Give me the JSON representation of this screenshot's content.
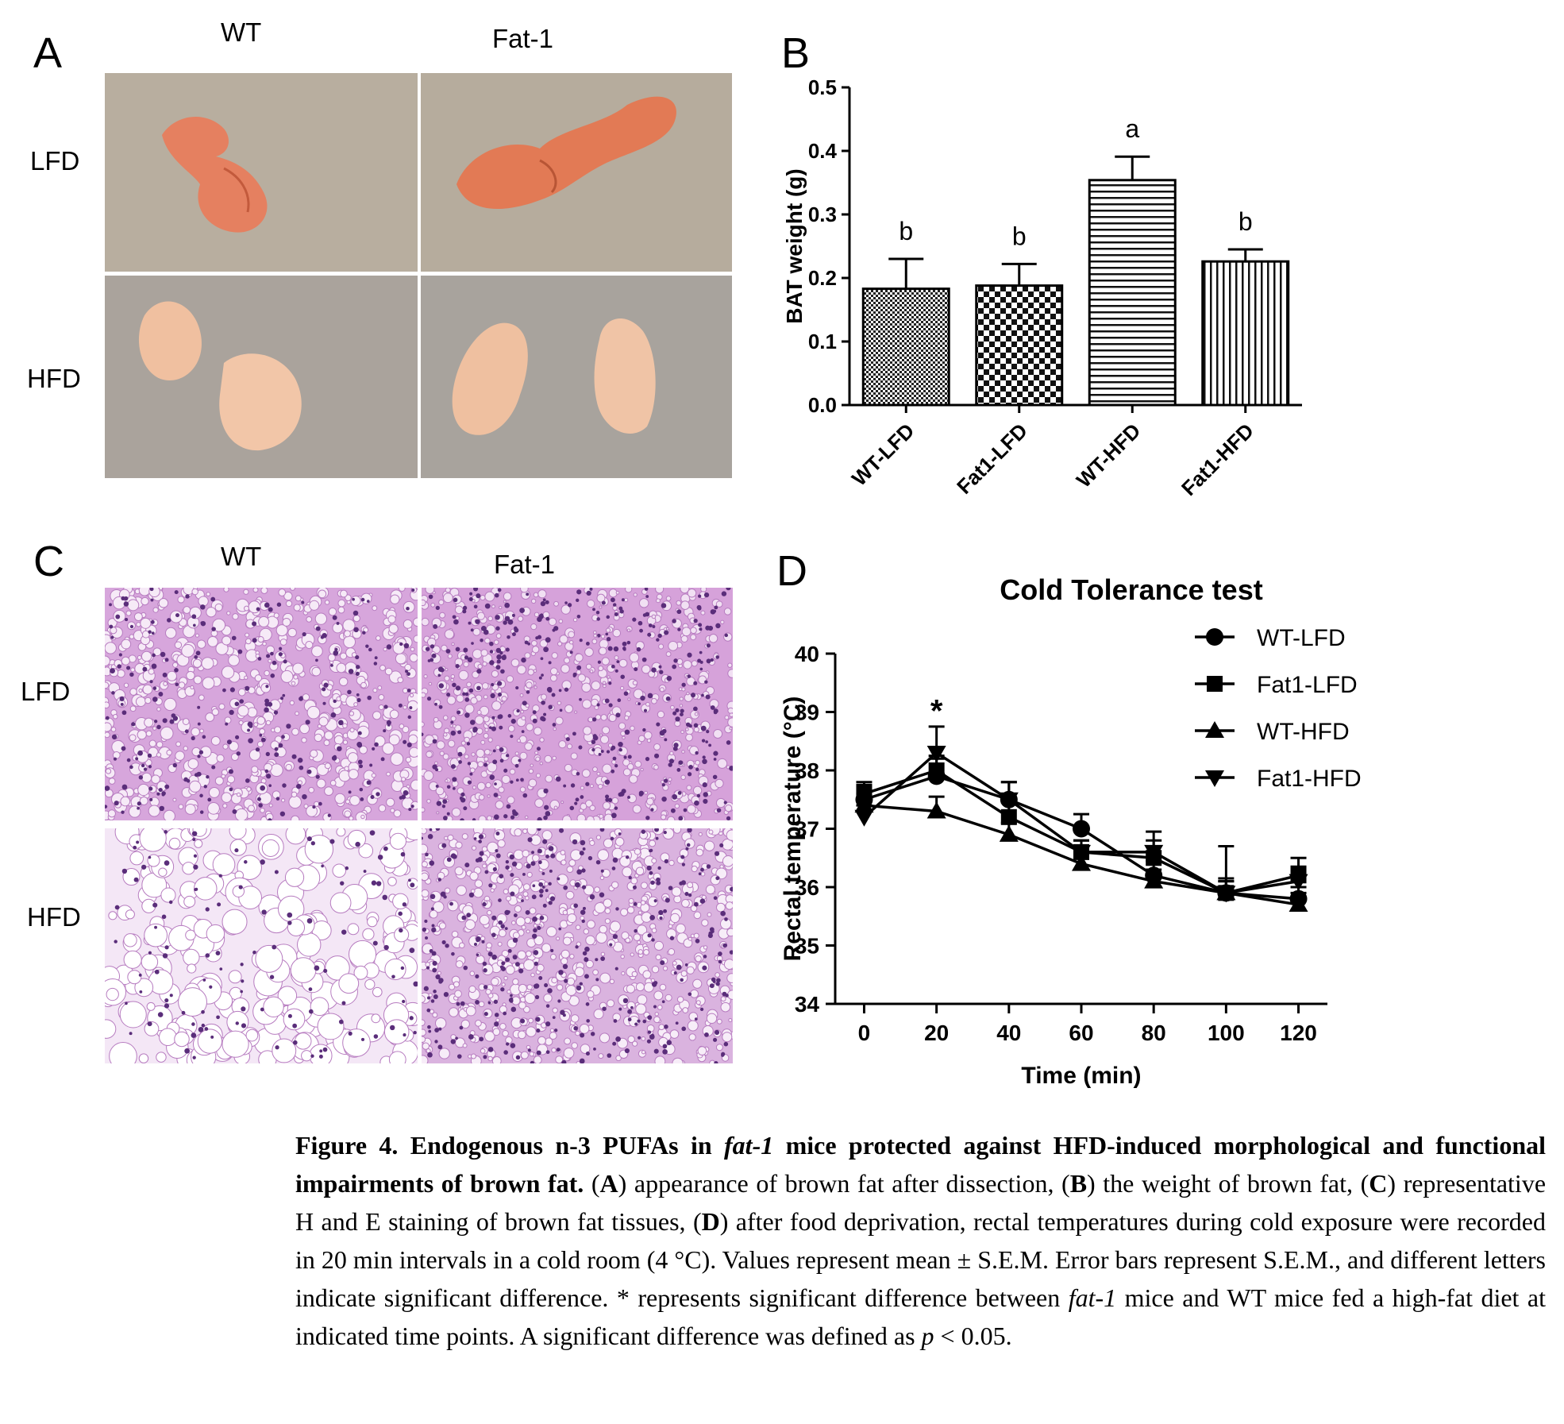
{
  "panels": {
    "A": {
      "letter": "A",
      "columns": [
        "WT",
        "Fat-1"
      ],
      "rows": [
        "LFD",
        "HFD"
      ]
    },
    "B": {
      "letter": "B"
    },
    "C": {
      "letter": "C",
      "columns": [
        "WT",
        "Fat-1"
      ],
      "rows": [
        "LFD",
        "HFD"
      ]
    },
    "D": {
      "letter": "D"
    }
  },
  "colors": {
    "photo_background": "#b7ada0",
    "tissue_lfd": "#e07a55",
    "tissue_hfd": "#f0c2a4",
    "he_stain": "#c98fd0",
    "he_nucleus": "#5a2d7a"
  },
  "chart_data": [
    {
      "id": "B",
      "type": "bar",
      "title": "",
      "xlabel": "",
      "ylabel": "BAT weight (g)",
      "categories": [
        "WT-LFD",
        "Fat1-LFD",
        "WT-HFD",
        "Fat1-HFD"
      ],
      "values": [
        0.183,
        0.188,
        0.354,
        0.226
      ],
      "errors": [
        0.047,
        0.034,
        0.037,
        0.019
      ],
      "letters": [
        "b",
        "b",
        "a",
        "b"
      ],
      "ylim": [
        0,
        0.5
      ],
      "yticks": [
        "0.0",
        "0.1",
        "0.2",
        "0.3",
        "0.4",
        "0.5"
      ],
      "patterns": [
        "fine-dots",
        "checker",
        "horizontal-lines",
        "vertical-lines"
      ],
      "grid": false
    },
    {
      "id": "D",
      "type": "line",
      "title": "Cold Tolerance test",
      "xlabel": "Time (min)",
      "ylabel": "Rectal temperature (°C)",
      "x": [
        0,
        20,
        40,
        60,
        80,
        100,
        120
      ],
      "xticks": [
        "0",
        "20",
        "40",
        "60",
        "80",
        "100",
        "120"
      ],
      "ylim": [
        34,
        40
      ],
      "yticks": [
        "34",
        "35",
        "36",
        "37",
        "38",
        "39",
        "40"
      ],
      "legend_position": "top-right",
      "annotation": {
        "text": "*",
        "x": 20
      },
      "series": [
        {
          "name": "WT-LFD",
          "marker": "circle",
          "values": [
            37.5,
            37.9,
            37.5,
            37.0,
            36.2,
            35.9,
            35.8
          ],
          "errors": [
            0.25,
            0.3,
            0.3,
            0.25,
            0.25,
            0.2,
            0.2
          ]
        },
        {
          "name": "Fat1-LFD",
          "marker": "square",
          "values": [
            37.6,
            38.0,
            37.2,
            36.6,
            36.5,
            35.9,
            36.2
          ],
          "errors": [
            0.2,
            0.25,
            0.25,
            0.2,
            0.3,
            0.8,
            0.3
          ]
        },
        {
          "name": "WT-HFD",
          "marker": "triangle-up",
          "values": [
            37.4,
            37.3,
            36.9,
            36.4,
            36.1,
            35.9,
            35.7
          ],
          "errors": [
            0.2,
            0.25,
            0.2,
            0.15,
            0.2,
            0.2,
            0.2
          ]
        },
        {
          "name": "Fat1-HFD",
          "marker": "triangle-down",
          "values": [
            37.2,
            38.3,
            37.5,
            36.6,
            36.6,
            35.9,
            36.1
          ],
          "errors": [
            0.2,
            0.45,
            0.3,
            0.2,
            0.35,
            0.25,
            0.25
          ]
        }
      ]
    }
  ],
  "caption": {
    "figure_label": "Figure 4.",
    "title_part1": " Endogenous n-3 PUFAs in ",
    "title_italic": "fat-1",
    "title_part2": " mice protected against HFD-induced morphological and functional impairments of brown fat.",
    "p1": " (",
    "A": "A",
    "t1": ") appearance of brown fat after dissection, (",
    "B": "B",
    "t2": ") the weight of brown fat, (",
    "C": "C",
    "t3": ") representative H and E staining of brown fat tissues, (",
    "D": "D",
    "t4": ") after food deprivation, rectal temperatures during cold exposure were recorded in 20 min intervals in a cold room (4 °C). Values represent mean ± S.E.M. Error bars represent S.E.M., and different letters indicate significant difference. * represents significant difference between ",
    "fat1": "fat-1",
    "t5": " mice and WT mice fed a high-fat diet at indicated time points. A significant difference was defined as ",
    "p": "p",
    "t6": " < 0.05."
  }
}
